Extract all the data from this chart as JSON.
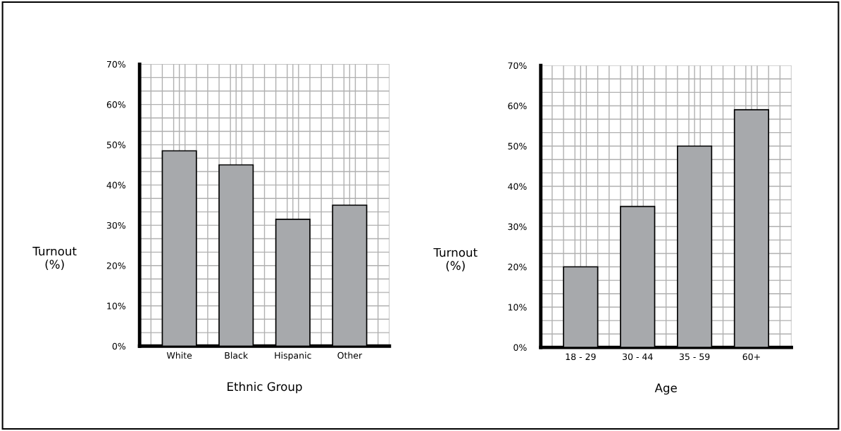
{
  "chart_data": [
    {
      "type": "bar",
      "categories": [
        "White",
        "Black",
        "Hispanic",
        "Other"
      ],
      "values": [
        48.5,
        45,
        31.5,
        35
      ],
      "color": "#a7a9ac",
      "xlabel": "Ethnic Group",
      "ylabel": "Turnout\n(%)",
      "ylim": [
        0,
        70
      ],
      "yticks": [
        {
          "value": 0,
          "label": "0%"
        },
        {
          "value": 10,
          "label": "10%"
        },
        {
          "value": 20,
          "label": "20%"
        },
        {
          "value": 30,
          "label": "30%"
        },
        {
          "value": 40,
          "label": "40%"
        },
        {
          "value": 50,
          "label": "50%"
        },
        {
          "value": 60,
          "label": "60%"
        },
        {
          "value": 70,
          "label": "70%"
        }
      ],
      "grid": true
    },
    {
      "type": "bar",
      "categories": [
        "18 - 29",
        "30 - 44",
        "35 - 59",
        "60+"
      ],
      "values": [
        20,
        35,
        50,
        59
      ],
      "color": "#a7a9ac",
      "xlabel": "Age",
      "ylabel": "Turnout\n(%)",
      "ylim": [
        0,
        70
      ],
      "yticks": [
        {
          "value": 0,
          "label": "0%"
        },
        {
          "value": 10,
          "label": "10%"
        },
        {
          "value": 20,
          "label": "20%"
        },
        {
          "value": 30,
          "label": "30%"
        },
        {
          "value": 40,
          "label": "40%"
        },
        {
          "value": 50,
          "label": "50%"
        },
        {
          "value": 60,
          "label": "60%"
        },
        {
          "value": 70,
          "label": "70%"
        }
      ],
      "grid": true
    }
  ]
}
